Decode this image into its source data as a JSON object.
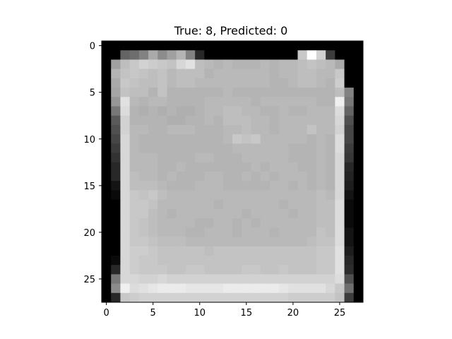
{
  "chart_data": {
    "type": "heatmap",
    "title": "True: 8, Predicted: 0",
    "xlabel": "",
    "ylabel": "",
    "colormap": "gray",
    "xlim": [
      -0.5,
      27.5
    ],
    "ylim": [
      27.5,
      -0.5
    ],
    "y_axis_inverted": true,
    "grid": false,
    "colors": {
      "frame": "#000000",
      "background": "#ffffff"
    },
    "x_ticks": [
      0,
      5,
      10,
      15,
      20,
      25
    ],
    "y_ticks": [
      0,
      5,
      10,
      15,
      20,
      25
    ],
    "x_tick_labels": [
      "0",
      "5",
      "10",
      "15",
      "20",
      "25"
    ],
    "y_tick_labels": [
      "0",
      "5",
      "10",
      "15",
      "20",
      "25"
    ],
    "values": [
      [
        0,
        0,
        0,
        0,
        0,
        0,
        0,
        0,
        0,
        0,
        0,
        0,
        0,
        0,
        0,
        0,
        0,
        0,
        0,
        0,
        0,
        0,
        0,
        0,
        0,
        0,
        0,
        0
      ],
      [
        0,
        0,
        100,
        110,
        130,
        170,
        140,
        160,
        180,
        130,
        40,
        0,
        0,
        0,
        0,
        0,
        0,
        0,
        0,
        0,
        0,
        200,
        255,
        210,
        60,
        0,
        0,
        0
      ],
      [
        0,
        160,
        190,
        200,
        210,
        205,
        200,
        195,
        215,
        225,
        190,
        185,
        180,
        185,
        180,
        180,
        180,
        185,
        180,
        185,
        185,
        190,
        195,
        190,
        185,
        170,
        0,
        0
      ],
      [
        0,
        180,
        195,
        200,
        195,
        190,
        195,
        185,
        190,
        190,
        190,
        180,
        185,
        185,
        185,
        185,
        185,
        185,
        180,
        185,
        185,
        190,
        190,
        185,
        185,
        200,
        0,
        0
      ],
      [
        0,
        170,
        200,
        195,
        190,
        190,
        195,
        185,
        190,
        190,
        185,
        185,
        185,
        185,
        185,
        185,
        185,
        185,
        180,
        180,
        185,
        190,
        190,
        185,
        180,
        205,
        0,
        0
      ],
      [
        0,
        165,
        195,
        190,
        190,
        180,
        195,
        180,
        180,
        180,
        180,
        180,
        180,
        185,
        180,
        180,
        180,
        180,
        180,
        180,
        180,
        180,
        180,
        180,
        180,
        190,
        130,
        0
      ],
      [
        0,
        150,
        225,
        185,
        180,
        185,
        185,
        180,
        180,
        180,
        180,
        185,
        185,
        185,
        185,
        185,
        180,
        185,
        185,
        185,
        185,
        185,
        185,
        180,
        180,
        240,
        120,
        0
      ],
      [
        0,
        120,
        220,
        180,
        175,
        180,
        175,
        180,
        175,
        175,
        180,
        185,
        185,
        190,
        190,
        185,
        185,
        180,
        180,
        185,
        180,
        180,
        185,
        185,
        185,
        220,
        100,
        0
      ],
      [
        0,
        90,
        210,
        180,
        180,
        180,
        180,
        175,
        175,
        180,
        180,
        185,
        180,
        190,
        190,
        190,
        185,
        185,
        180,
        185,
        185,
        185,
        185,
        185,
        185,
        215,
        80,
        0
      ],
      [
        0,
        80,
        210,
        185,
        185,
        180,
        180,
        185,
        185,
        185,
        180,
        180,
        180,
        185,
        185,
        190,
        185,
        185,
        180,
        185,
        185,
        185,
        195,
        185,
        185,
        210,
        70,
        0
      ],
      [
        0,
        70,
        215,
        185,
        180,
        180,
        180,
        180,
        180,
        180,
        180,
        180,
        180,
        185,
        200,
        195,
        200,
        185,
        185,
        185,
        185,
        185,
        180,
        185,
        180,
        220,
        70,
        0
      ],
      [
        0,
        60,
        215,
        185,
        180,
        180,
        180,
        180,
        180,
        180,
        180,
        180,
        180,
        180,
        185,
        185,
        185,
        185,
        185,
        185,
        180,
        180,
        180,
        185,
        180,
        220,
        60,
        0
      ],
      [
        0,
        50,
        215,
        185,
        185,
        185,
        180,
        180,
        180,
        180,
        185,
        185,
        180,
        180,
        180,
        185,
        185,
        185,
        185,
        185,
        180,
        180,
        180,
        185,
        180,
        215,
        55,
        0
      ],
      [
        0,
        40,
        215,
        185,
        185,
        185,
        180,
        180,
        185,
        180,
        180,
        180,
        180,
        180,
        180,
        180,
        185,
        180,
        185,
        185,
        185,
        180,
        180,
        185,
        180,
        215,
        40,
        0
      ],
      [
        0,
        40,
        215,
        190,
        185,
        185,
        180,
        185,
        180,
        180,
        180,
        185,
        185,
        180,
        180,
        185,
        180,
        185,
        180,
        185,
        185,
        185,
        180,
        185,
        180,
        215,
        35,
        0
      ],
      [
        0,
        20,
        215,
        190,
        190,
        190,
        185,
        180,
        180,
        180,
        185,
        185,
        185,
        180,
        180,
        180,
        180,
        180,
        185,
        185,
        180,
        185,
        180,
        185,
        180,
        215,
        30,
        0
      ],
      [
        0,
        10,
        215,
        200,
        195,
        200,
        190,
        185,
        185,
        185,
        185,
        185,
        185,
        185,
        185,
        185,
        185,
        185,
        185,
        185,
        185,
        185,
        185,
        190,
        185,
        215,
        20,
        0
      ],
      [
        0,
        0,
        215,
        200,
        200,
        195,
        185,
        185,
        185,
        185,
        185,
        185,
        180,
        185,
        185,
        185,
        185,
        185,
        185,
        180,
        185,
        185,
        185,
        190,
        190,
        220,
        10,
        0
      ],
      [
        0,
        0,
        215,
        200,
        200,
        190,
        185,
        180,
        185,
        185,
        185,
        185,
        185,
        185,
        185,
        180,
        185,
        185,
        185,
        185,
        180,
        185,
        185,
        190,
        190,
        220,
        10,
        0
      ],
      [
        0,
        0,
        215,
        200,
        195,
        190,
        185,
        185,
        185,
        185,
        180,
        180,
        185,
        185,
        180,
        185,
        180,
        185,
        185,
        185,
        185,
        185,
        185,
        190,
        190,
        220,
        10,
        0
      ],
      [
        0,
        0,
        215,
        200,
        195,
        190,
        185,
        185,
        185,
        180,
        180,
        185,
        185,
        185,
        180,
        185,
        185,
        185,
        180,
        185,
        185,
        185,
        185,
        195,
        190,
        220,
        20,
        0
      ],
      [
        0,
        0,
        215,
        200,
        200,
        195,
        190,
        190,
        190,
        185,
        185,
        185,
        185,
        185,
        185,
        185,
        185,
        185,
        185,
        185,
        185,
        185,
        190,
        195,
        195,
        220,
        20,
        0
      ],
      [
        0,
        0,
        215,
        205,
        205,
        200,
        195,
        195,
        195,
        195,
        195,
        190,
        195,
        195,
        195,
        195,
        195,
        195,
        195,
        195,
        195,
        195,
        195,
        200,
        200,
        225,
        30,
        0
      ],
      [
        0,
        10,
        215,
        205,
        200,
        200,
        195,
        195,
        195,
        195,
        195,
        195,
        195,
        195,
        195,
        195,
        195,
        195,
        195,
        195,
        195,
        195,
        195,
        200,
        200,
        225,
        40,
        0
      ],
      [
        0,
        40,
        215,
        205,
        200,
        200,
        200,
        195,
        195,
        200,
        200,
        195,
        195,
        195,
        195,
        200,
        200,
        195,
        195,
        200,
        195,
        195,
        195,
        200,
        200,
        225,
        45,
        0
      ],
      [
        0,
        120,
        215,
        215,
        210,
        210,
        215,
        210,
        210,
        210,
        210,
        210,
        210,
        210,
        210,
        210,
        210,
        210,
        210,
        210,
        210,
        210,
        210,
        210,
        210,
        220,
        80,
        0
      ],
      [
        0,
        140,
        240,
        220,
        225,
        230,
        235,
        235,
        235,
        230,
        230,
        230,
        230,
        235,
        235,
        235,
        235,
        235,
        235,
        230,
        225,
        225,
        225,
        225,
        215,
        200,
        110,
        0
      ],
      [
        0,
        40,
        200,
        205,
        210,
        210,
        210,
        210,
        210,
        210,
        210,
        210,
        210,
        210,
        210,
        210,
        210,
        210,
        210,
        210,
        205,
        205,
        205,
        205,
        205,
        195,
        60,
        0
      ]
    ]
  }
}
